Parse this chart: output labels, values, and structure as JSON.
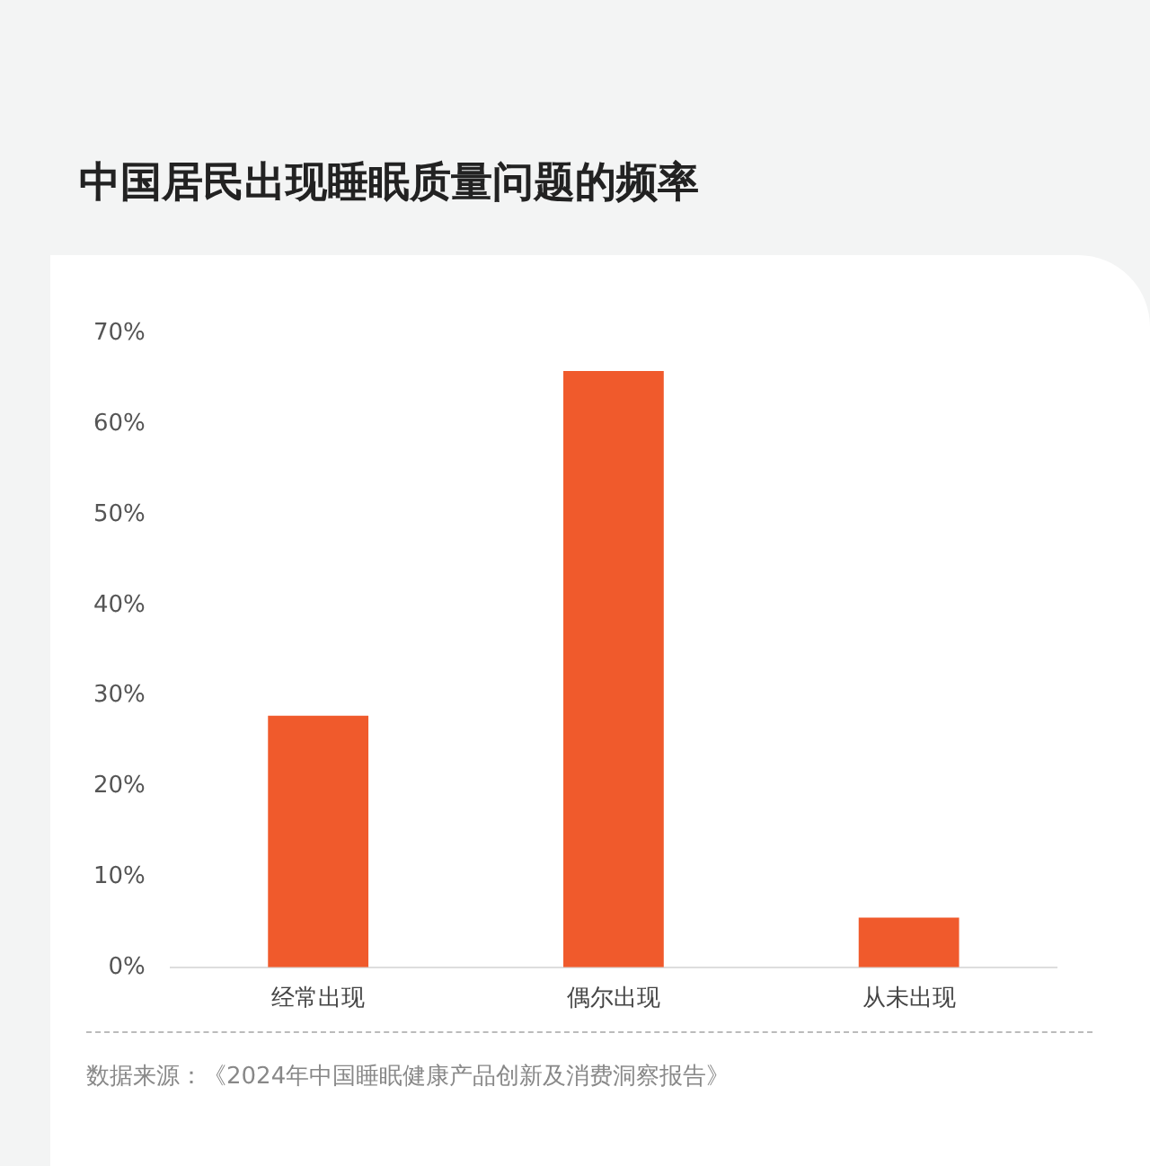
{
  "chart_data": {
    "type": "bar",
    "title": "中国居民出现睡眠质量问题的频率",
    "categories": [
      "经常出现",
      "偶尔出现",
      "从未出现"
    ],
    "values": [
      27.8,
      65.9,
      5.5
    ],
    "color": "#f05a2c",
    "ylim": [
      0,
      70
    ],
    "yticks": [
      {
        "value": 0,
        "label": "0%"
      },
      {
        "value": 10,
        "label": "10%"
      },
      {
        "value": 20,
        "label": "20%"
      },
      {
        "value": 30,
        "label": "30%"
      },
      {
        "value": 40,
        "label": "40%"
      },
      {
        "value": 50,
        "label": "50%"
      },
      {
        "value": 60,
        "label": "60%"
      },
      {
        "value": 70,
        "label": "70%"
      }
    ],
    "grid": false,
    "legend": false,
    "annotations": [
      "数据来源：《2024年中国睡眠健康产品创新及消费洞察报告》"
    ]
  }
}
